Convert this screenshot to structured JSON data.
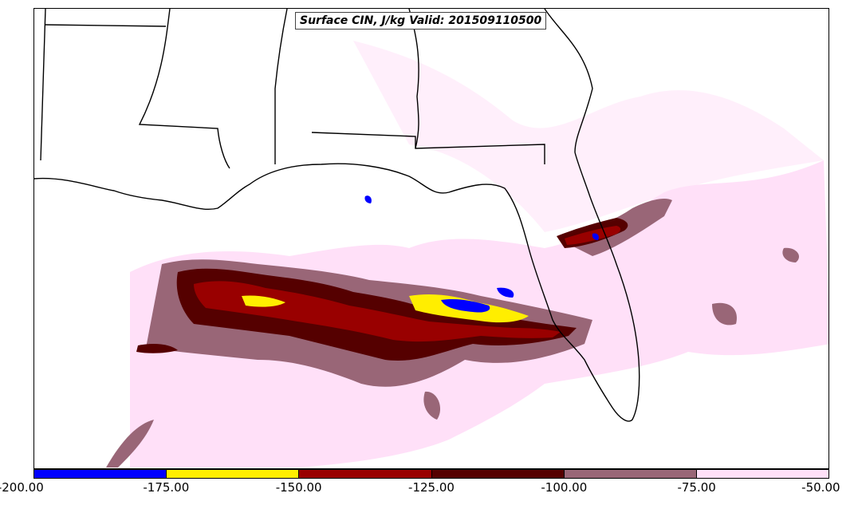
{
  "title": "Surface CIN, J/kg Valid: 201509110500",
  "colorbar": {
    "segments": [
      {
        "from": -200,
        "to": -175,
        "color": "#0000ff"
      },
      {
        "from": -175,
        "to": -150,
        "color": "#ffee00"
      },
      {
        "from": -150,
        "to": -125,
        "color": "#990000"
      },
      {
        "from": -125,
        "to": -100,
        "color": "#550000"
      },
      {
        "from": -100,
        "to": -75,
        "color": "#996677"
      },
      {
        "from": -75,
        "to": -50,
        "color": "#ffe0f8"
      }
    ],
    "tick_labels": [
      "-200.00",
      "-175.00",
      "-150.00",
      "-125.00",
      "-100.00",
      "-75.00",
      "-50.00"
    ]
  }
}
